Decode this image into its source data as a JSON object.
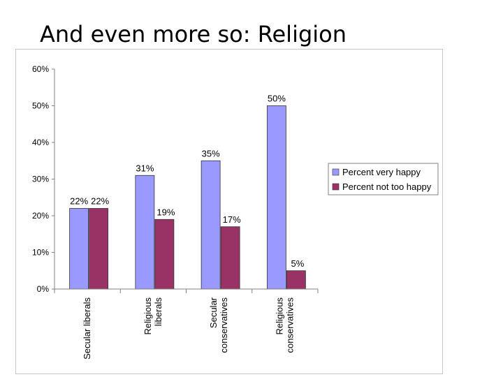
{
  "slide": {
    "title": "And even more so: Religion"
  },
  "chart_data": {
    "type": "bar",
    "categories": [
      [
        "Secular liberals"
      ],
      [
        "Religious",
        "liberals"
      ],
      [
        "Secular",
        "conservatives"
      ],
      [
        "Religious",
        "conservatives"
      ]
    ],
    "series": [
      {
        "name": "Percent very happy",
        "values": [
          22,
          31,
          35,
          50
        ],
        "labels": [
          "22%",
          "31%",
          "35%",
          "50%"
        ],
        "color": "#9999ff"
      },
      {
        "name": "Percent not too happy",
        "values": [
          22,
          19,
          17,
          5
        ],
        "labels": [
          "22%",
          "19%",
          "17%",
          "5%"
        ],
        "color": "#993366"
      }
    ],
    "y_ticks": [
      0,
      10,
      20,
      30,
      40,
      50,
      60
    ],
    "y_tick_labels": [
      "0%",
      "10%",
      "20%",
      "30%",
      "40%",
      "50%",
      "60%"
    ],
    "ylim": [
      0,
      60
    ],
    "grid": false,
    "legend_position": "right",
    "title": "",
    "xlabel": "",
    "ylabel": ""
  }
}
